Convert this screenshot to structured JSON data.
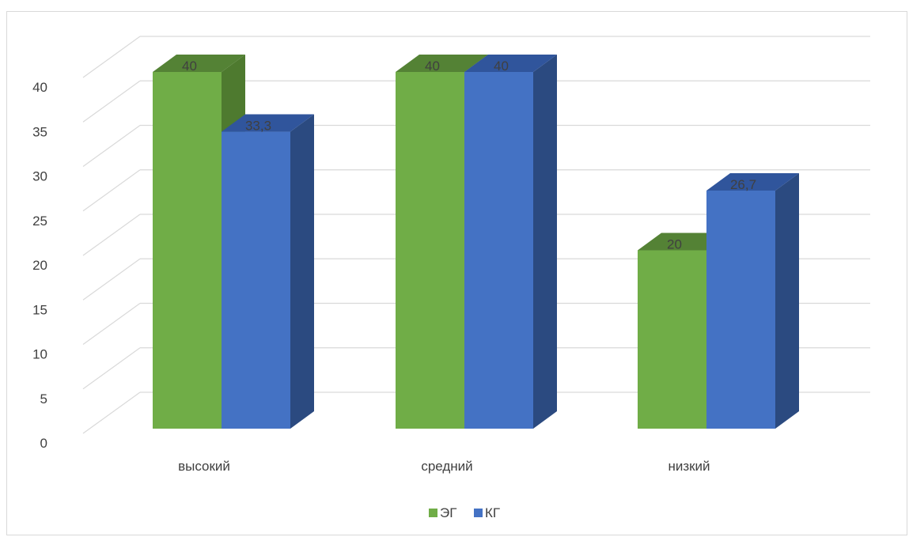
{
  "chart_data": {
    "type": "bar",
    "categories": [
      "высокий",
      "средний",
      "низкий"
    ],
    "series": [
      {
        "name": "ЭГ",
        "values": [
          40,
          40,
          20
        ],
        "labels": [
          "40",
          "40",
          "20"
        ],
        "color": "#70ad47",
        "side_color": "#4e7a2f",
        "top_color": "#548235"
      },
      {
        "name": "КГ",
        "values": [
          33.3,
          40,
          26.7
        ],
        "labels": [
          "33,3",
          "40",
          "26,7"
        ],
        "color": "#4472c4",
        "side_color": "#2b4a80",
        "top_color": "#30559c"
      }
    ],
    "y_ticks": [
      "0",
      "5",
      "10",
      "15",
      "20",
      "25",
      "30",
      "35",
      "40"
    ],
    "ylim": [
      0,
      40
    ],
    "grid": true,
    "legend_position": "bottom",
    "title": "",
    "xlabel": "",
    "ylabel": ""
  }
}
